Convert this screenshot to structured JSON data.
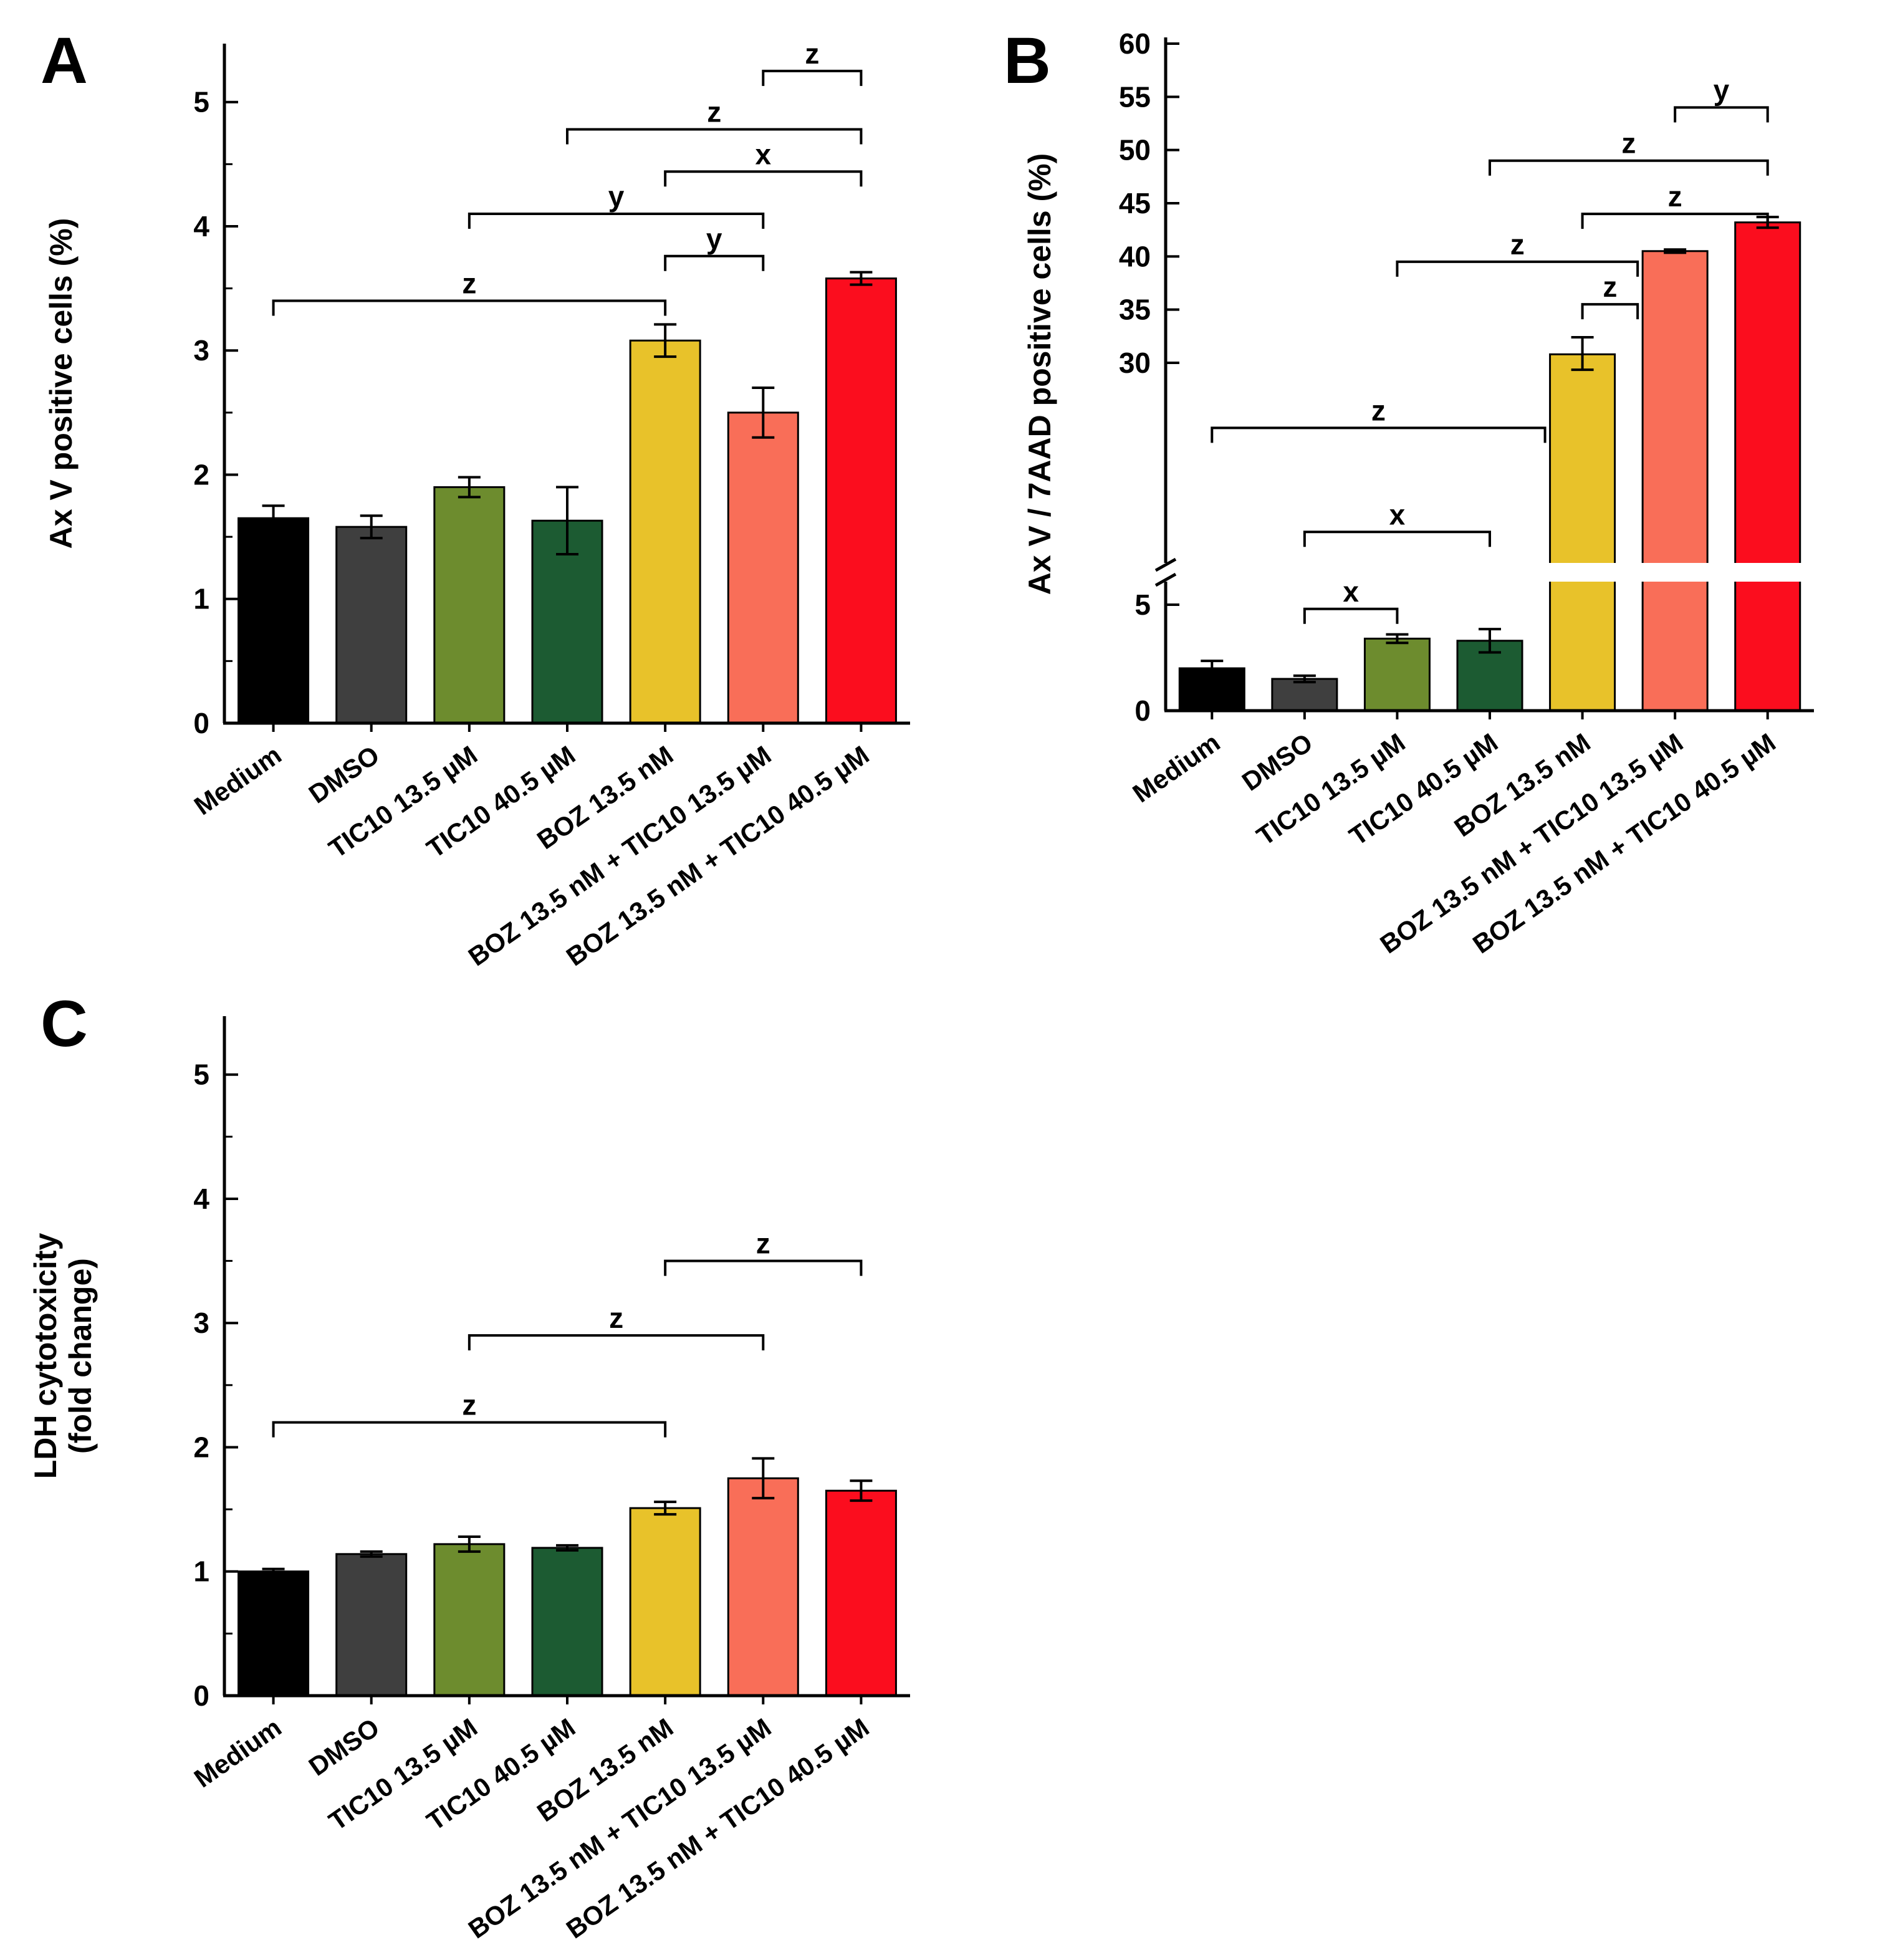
{
  "figure": {
    "background": "#ffffff"
  },
  "chart_data": [
    {
      "id": "A",
      "panel_label": "A",
      "type": "bar",
      "ylabel_lines": [
        "Ax V positive cells (%)"
      ],
      "categories": [
        "Medium",
        "DMSO",
        "TIC10 13.5 µM",
        "TIC10 40.5 µM",
        "BOZ 13.5 nM",
        "BOZ 13.5 nM + TIC10 13.5 µM",
        "BOZ 13.5 nM + TIC10 40.5 µM"
      ],
      "values": [
        1.65,
        1.58,
        1.9,
        1.63,
        3.08,
        2.5,
        3.58
      ],
      "errors": [
        0.1,
        0.09,
        0.08,
        0.27,
        0.13,
        0.2,
        0.05
      ],
      "bar_colors": [
        "#000000",
        "#3f3f3f",
        "#6d8c2e",
        "#1c5b32",
        "#e8c22a",
        "#f96e58",
        "#fb0d1e"
      ],
      "ylim": [
        0,
        5.42
      ],
      "yticks": [
        0,
        1,
        2,
        3,
        4,
        5
      ],
      "grid": false,
      "significance": [
        {
          "from": 0,
          "to": 4,
          "label": "z",
          "level": 3.4
        },
        {
          "from": 4,
          "to": 5,
          "label": "y",
          "level": 3.76
        },
        {
          "from": 2,
          "to": 5,
          "label": "y",
          "level": 4.1
        },
        {
          "from": 4,
          "to": 6,
          "label": "x",
          "level": 4.44
        },
        {
          "from": 3,
          "to": 6,
          "label": "z",
          "level": 4.78
        },
        {
          "from": 5,
          "to": 6,
          "label": "z",
          "level": 5.25
        }
      ]
    },
    {
      "id": "B",
      "panel_label": "B",
      "type": "bar",
      "ylabel_lines": [
        "Ax V / 7AAD positive cells (%)"
      ],
      "categories": [
        "Medium",
        "DMSO",
        "TIC10 13.5 µM",
        "TIC10 40.5 µM",
        "BOZ 13.5 nM",
        "BOZ 13.5 nM + TIC10 13.5 µM",
        "BOZ 13.5 nM + TIC10 40.5 µM"
      ],
      "values": [
        2.0,
        1.5,
        3.4,
        3.3,
        30.8,
        40.5,
        43.2
      ],
      "errors": [
        0.35,
        0.15,
        0.2,
        0.55,
        1.6,
        0.15,
        0.5
      ],
      "bar_colors": [
        "#000000",
        "#3f3f3f",
        "#6d8c2e",
        "#1c5b32",
        "#e8c22a",
        "#f96e58",
        "#fb0d1e"
      ],
      "ylim": [
        0,
        60
      ],
      "yticks": [
        0,
        5,
        30,
        35,
        40,
        45,
        50,
        55,
        60
      ],
      "axis_break": {
        "lower_max": 5,
        "upper_min": 30
      },
      "grid": false,
      "significance": [
        {
          "from": 1,
          "to": 2,
          "label": "x",
          "level": 4.8
        },
        {
          "from": 1,
          "to": 3,
          "label": "x",
          "level": 10.5
        },
        {
          "from": 0,
          "to": 4,
          "label": "z",
          "level": 22.5
        },
        {
          "from": 4,
          "to": 5,
          "label": "z",
          "level": 35.5
        },
        {
          "from": 2,
          "to": 5,
          "label": "z",
          "level": 39.5
        },
        {
          "from": 4,
          "to": 6,
          "label": "z",
          "level": 44
        },
        {
          "from": 3,
          "to": 6,
          "label": "z",
          "level": 49
        },
        {
          "from": 5,
          "to": 6,
          "label": "y",
          "level": 54
        }
      ]
    },
    {
      "id": "C",
      "panel_label": "C",
      "type": "bar",
      "ylabel_lines": [
        "LDH cytotoxicity",
        "(fold change)"
      ],
      "categories": [
        "Medium",
        "DMSO",
        "TIC10 13.5 µM",
        "TIC10 40.5 µM",
        "BOZ 13.5 nM",
        "BOZ 13.5 nM + TIC10 13.5 µM",
        "BOZ 13.5 nM + TIC10 40.5 µM"
      ],
      "values": [
        1.0,
        1.14,
        1.22,
        1.19,
        1.51,
        1.75,
        1.65
      ],
      "errors": [
        0.02,
        0.02,
        0.06,
        0.02,
        0.05,
        0.16,
        0.08
      ],
      "bar_colors": [
        "#000000",
        "#3f3f3f",
        "#6d8c2e",
        "#1c5b32",
        "#e8c22a",
        "#f96e58",
        "#fb0d1e"
      ],
      "ylim": [
        0,
        5.42
      ],
      "yticks": [
        0,
        1,
        2,
        3,
        4,
        5
      ],
      "grid": false,
      "significance": [
        {
          "from": 0,
          "to": 4,
          "label": "z",
          "level": 2.2
        },
        {
          "from": 2,
          "to": 5,
          "label": "z",
          "level": 2.9
        },
        {
          "from": 4,
          "to": 6,
          "label": "z",
          "level": 3.5
        }
      ]
    }
  ]
}
